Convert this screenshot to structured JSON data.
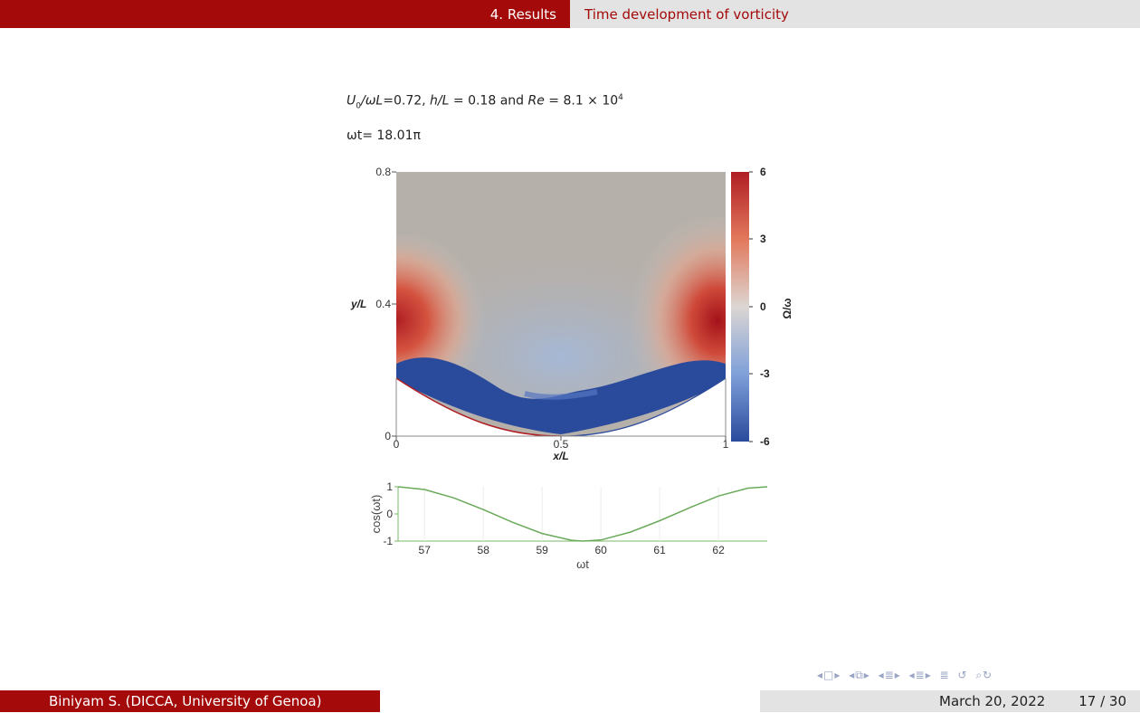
{
  "header": {
    "section": "4. Results",
    "subsection": "Time development of vorticity"
  },
  "params": {
    "u0": "U",
    "u0_sub": "0",
    "u0_rest": "/ωL",
    "u0_value": "=0.72, ",
    "h_label": "h/L",
    "h_value": " = 0.18 and ",
    "re_label": "Re",
    "re_value": " = 8.1 × 10",
    "re_exp": "4"
  },
  "time_label": "ωt= 18.01π",
  "contour_plot": {
    "y_ticks": [
      "0",
      "0.4",
      "0.8"
    ],
    "y_label": "y/L",
    "x_ticks": [
      "0",
      "0.5",
      "1"
    ],
    "x_label": "x/L",
    "colorbar_ticks": [
      "6",
      "3",
      "0",
      "-3",
      "-6"
    ],
    "colorbar_label": "Ω/ω",
    "colors": {
      "positive": "#b01e24",
      "zero": "#c9c4c0",
      "negative": "#2a4a9c",
      "background": "#b6b0aa"
    }
  },
  "chart_data": {
    "type": "line",
    "xlabel": "ωt",
    "ylabel": "cos(ωt)",
    "x_ticks": [
      "57",
      "58",
      "59",
      "60",
      "61",
      "62"
    ],
    "y_ticks": [
      "1",
      "0",
      "-1"
    ],
    "xlim": [
      56.55,
      62.83
    ],
    "ylim": [
      -1,
      1
    ],
    "series": [
      {
        "x": [
          56.55,
          57.0,
          57.5,
          58.0,
          58.5,
          59.0,
          59.5,
          59.7,
          60.0,
          60.5,
          61.0,
          61.5,
          62.0,
          62.5,
          62.83
        ],
        "y": [
          1.0,
          0.9,
          0.59,
          0.16,
          -0.31,
          -0.72,
          -0.97,
          -1.0,
          -0.96,
          -0.67,
          -0.25,
          0.22,
          0.66,
          0.95,
          1.0
        ],
        "color": "#6aaa5a"
      }
    ]
  },
  "footer": {
    "author": "Biniyam S.  (DICCA, University of Genoa)",
    "date": "March 20, 2022",
    "page": "17 / 30"
  },
  "nav_icons": [
    "frame-prev-icon",
    "frame-next-icon",
    "section-prev-icon",
    "section-next-icon",
    "subsection-prev-icon",
    "subsection-next-icon",
    "align-icon",
    "search-icon",
    "undo-icon"
  ]
}
